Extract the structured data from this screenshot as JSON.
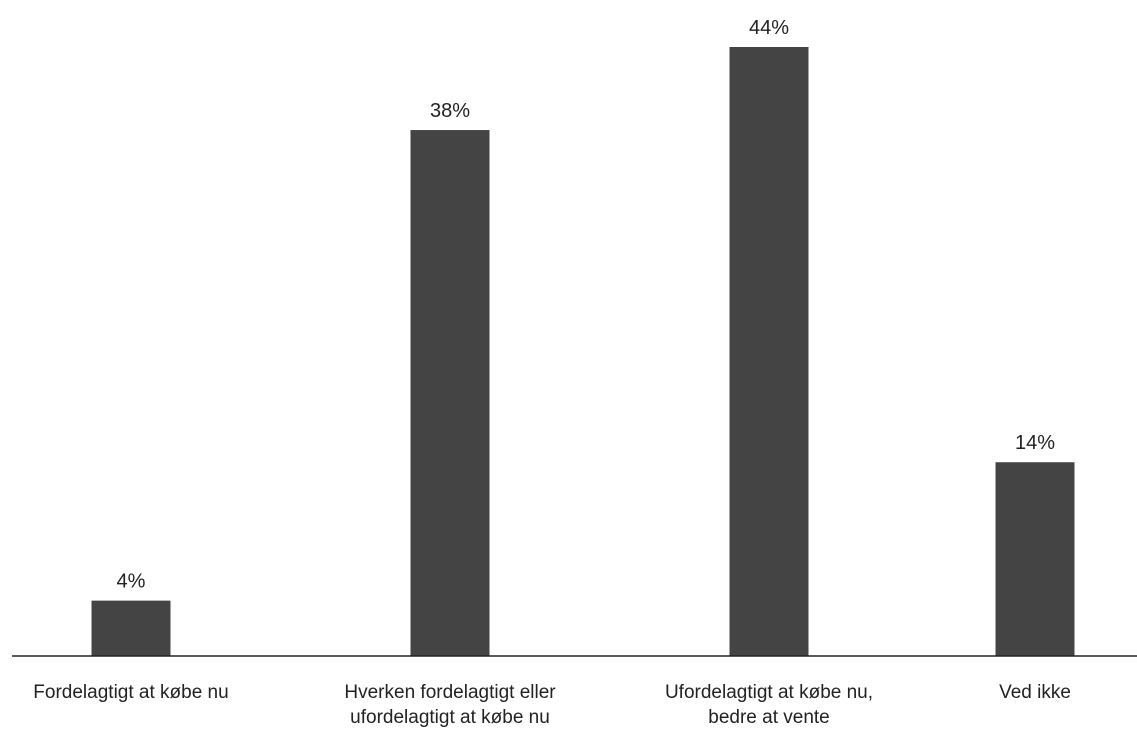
{
  "chart_data": {
    "type": "bar",
    "title": "",
    "xlabel": "",
    "ylabel": "",
    "categories": [
      [
        "Fordelagtigt at købe nu"
      ],
      [
        "Hverken fordelagtigt eller",
        "ufordelagtigt at købe nu"
      ],
      [
        "Ufordelagtigt at købe nu,",
        "bedre at vente"
      ],
      [
        "Ved ikke"
      ]
    ],
    "values": [
      4,
      38,
      44,
      14
    ],
    "value_labels": [
      "4%",
      "38%",
      "44%",
      "14%"
    ],
    "unit": "%",
    "ylim": [
      0,
      44
    ],
    "grid": false,
    "legend": "none",
    "colors": {
      "bar": "#444444",
      "axis": "#222222",
      "text": "#222222",
      "background": "#ffffff"
    }
  }
}
